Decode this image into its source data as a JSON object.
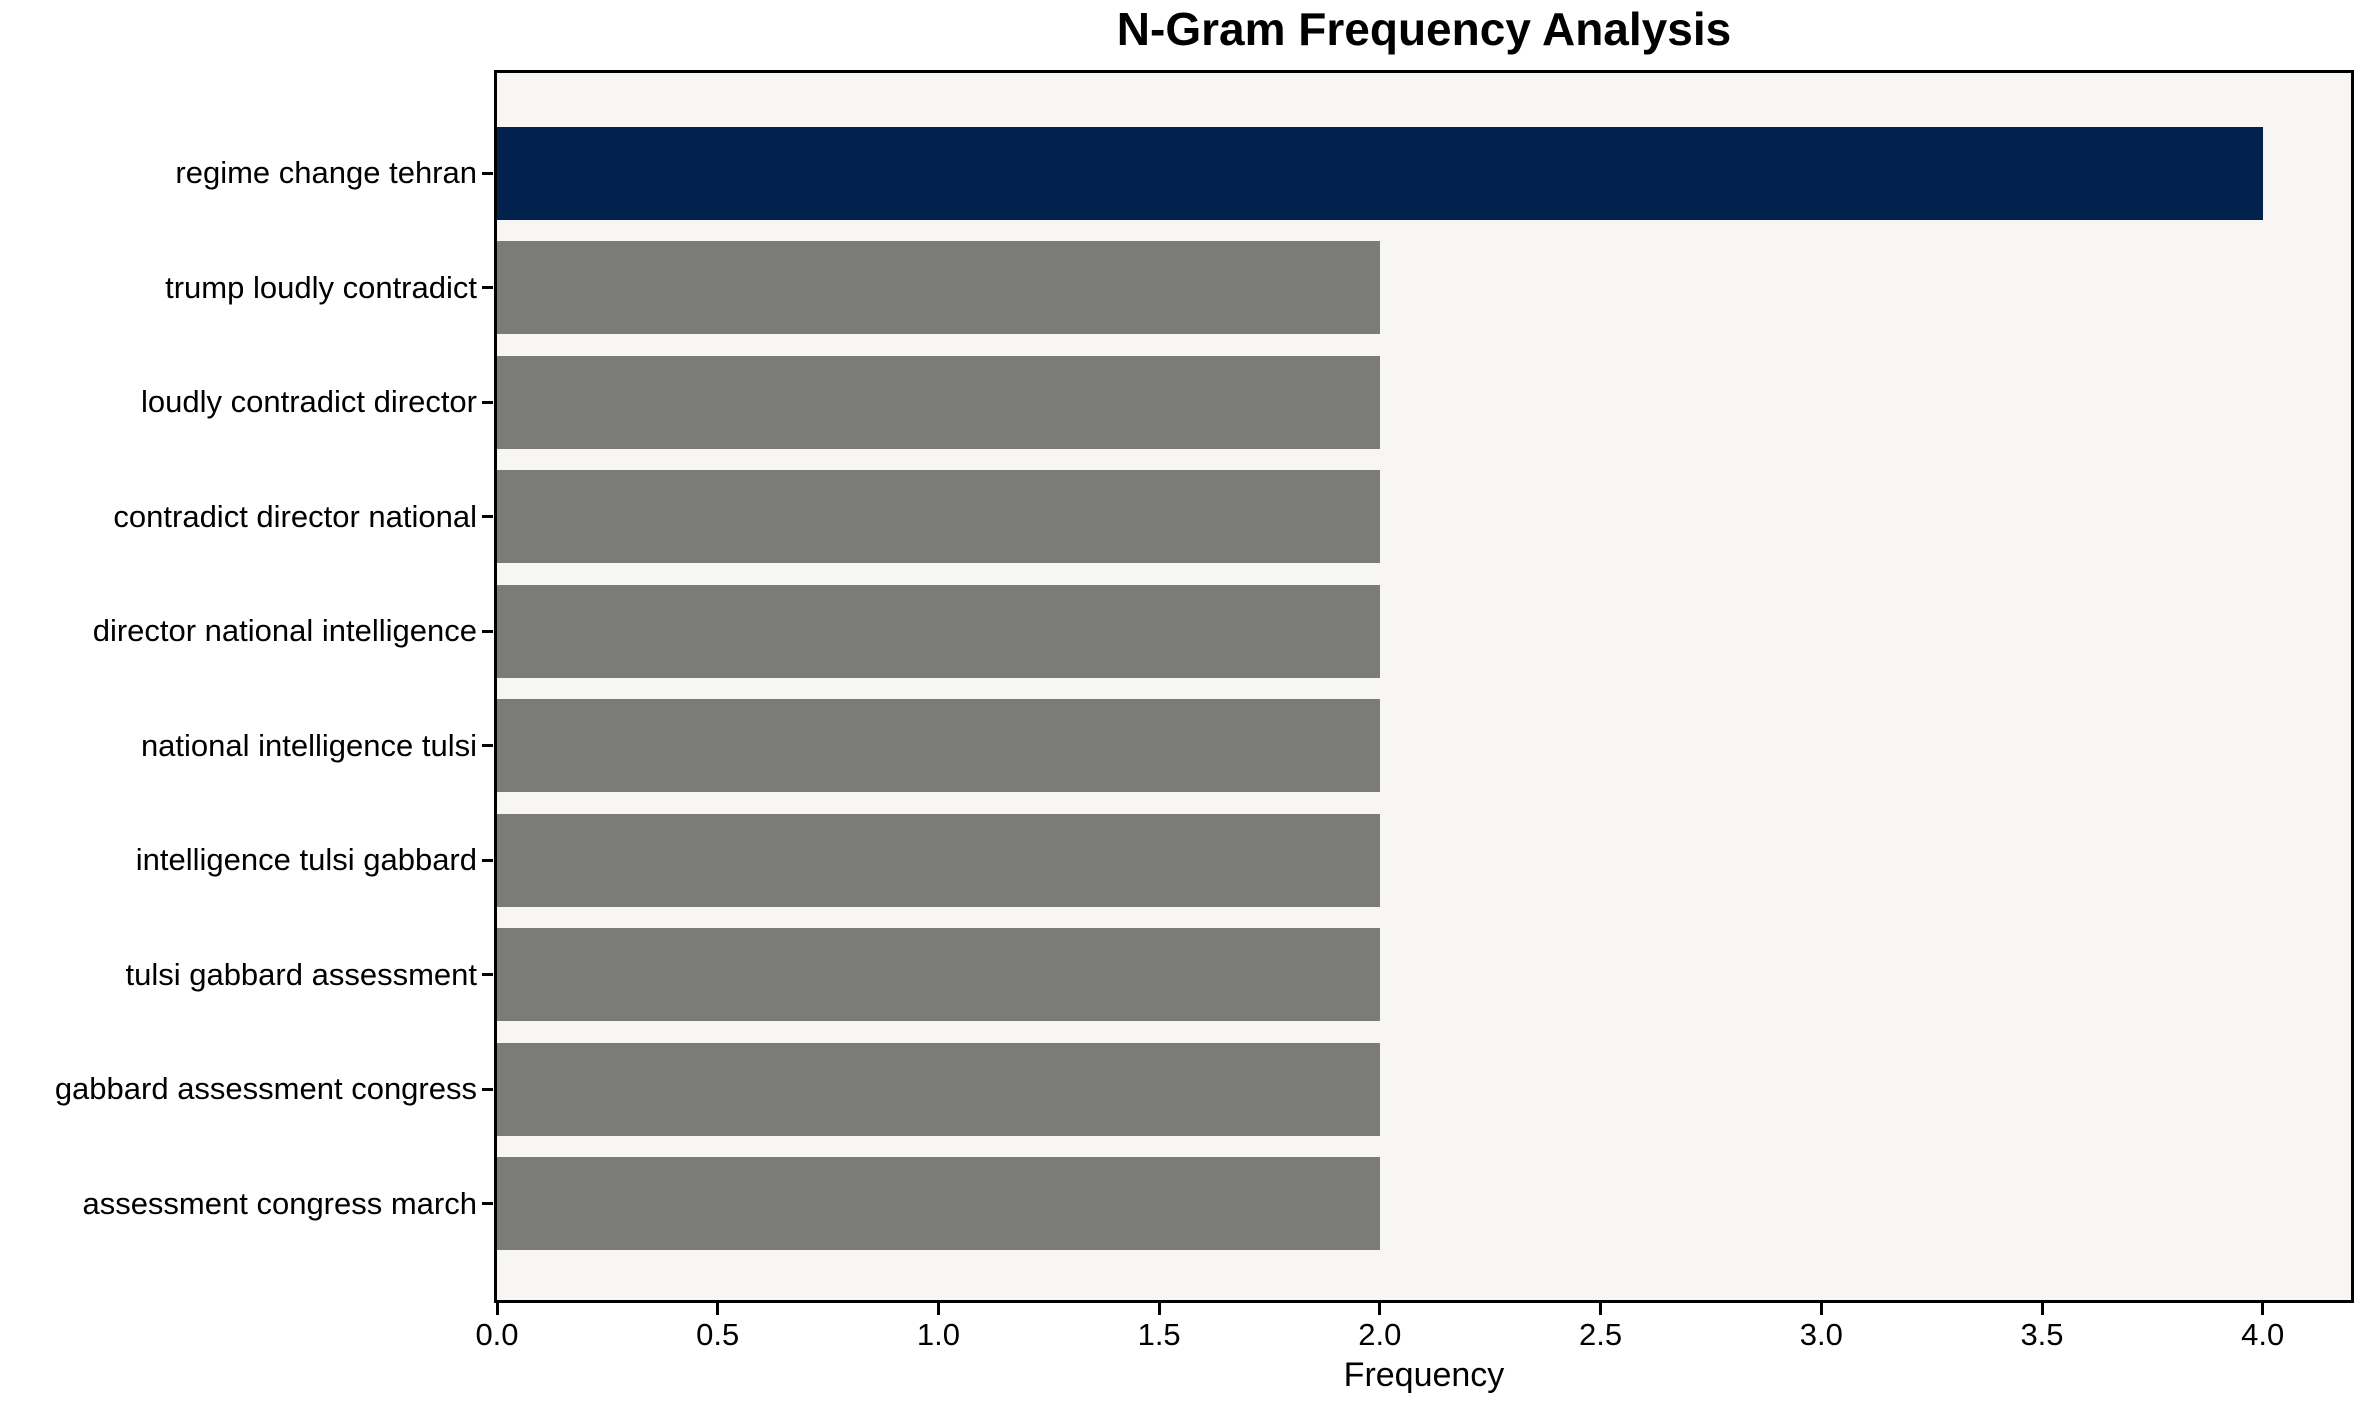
{
  "chart_data": {
    "type": "bar",
    "orientation": "horizontal",
    "title": "N-Gram Frequency Analysis",
    "xlabel": "Frequency",
    "ylabel": "",
    "categories": [
      "regime change tehran",
      "trump loudly contradict",
      "loudly contradict director",
      "contradict director national",
      "director national intelligence",
      "national intelligence tulsi",
      "intelligence tulsi gabbard",
      "tulsi gabbard assessment",
      "gabbard assessment congress",
      "assessment congress march"
    ],
    "values": [
      4,
      2,
      2,
      2,
      2,
      2,
      2,
      2,
      2,
      2
    ],
    "bar_colors": [
      "#03214D",
      "#7B7B78",
      "#7B7B78",
      "#7B7B78",
      "#7B7B78",
      "#7B7B78",
      "#7B7B78",
      "#7B7B78",
      "#7B7B78",
      "#7B7B78"
    ],
    "xlim": [
      0,
      4.2
    ],
    "xticks": [
      0.0,
      0.5,
      1.0,
      1.5,
      2.0,
      2.5,
      3.0,
      3.5,
      4.0
    ],
    "xtick_labels": [
      "0.0",
      "0.5",
      "1.0",
      "1.5",
      "2.0",
      "2.5",
      "3.0",
      "3.5",
      "4.0"
    ],
    "grid": false,
    "legend": null,
    "colors": {
      "highlight_bar": "#03214D",
      "default_bar": "#7B7B78",
      "plot_background": "#F7F6F5",
      "figure_background": "#FFFFFF",
      "axis": "#000000",
      "text": "#000000"
    }
  }
}
